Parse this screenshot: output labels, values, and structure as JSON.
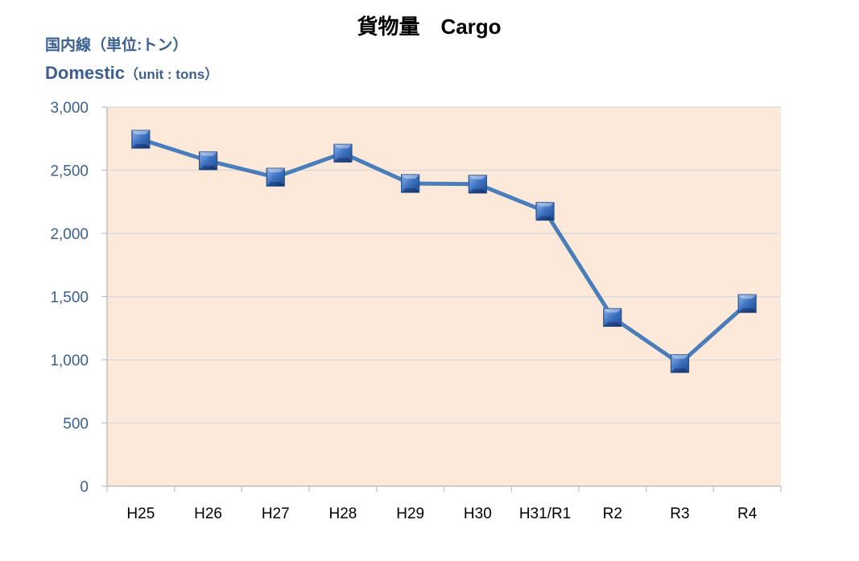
{
  "chart_data": {
    "type": "line",
    "title": "貨物量　Cargo",
    "unit_label_ja": "国内線（単位:トン）",
    "unit_label_en_main": "Domestic",
    "unit_label_en_sub": "（unit : tons）",
    "categories": [
      "H25",
      "H26",
      "H27",
      "H28",
      "H29",
      "H30",
      "H31/R1",
      "R2",
      "R3",
      "R4"
    ],
    "series": [
      {
        "values": [
          2745,
          2575,
          2445,
          2635,
          2395,
          2390,
          2175,
          1335,
          970,
          1445
        ]
      }
    ],
    "ylim": [
      0,
      3000
    ],
    "yticks": [
      0,
      500,
      1000,
      1500,
      2000,
      2500,
      3000
    ],
    "ytick_labels": [
      "0",
      "500",
      "1,000",
      "1,500",
      "2,000",
      "2,500",
      "3,000"
    ],
    "grid": true,
    "legend": "none"
  },
  "colors": {
    "plot_background": "#fde9d9",
    "gridline": "#d9d9d9",
    "axis": "#bfbfbf",
    "line": "#4a7ebb",
    "marker_fill": "#3c71c0",
    "marker_edge": "#26508f",
    "label_blue": "#3b5f8e"
  }
}
